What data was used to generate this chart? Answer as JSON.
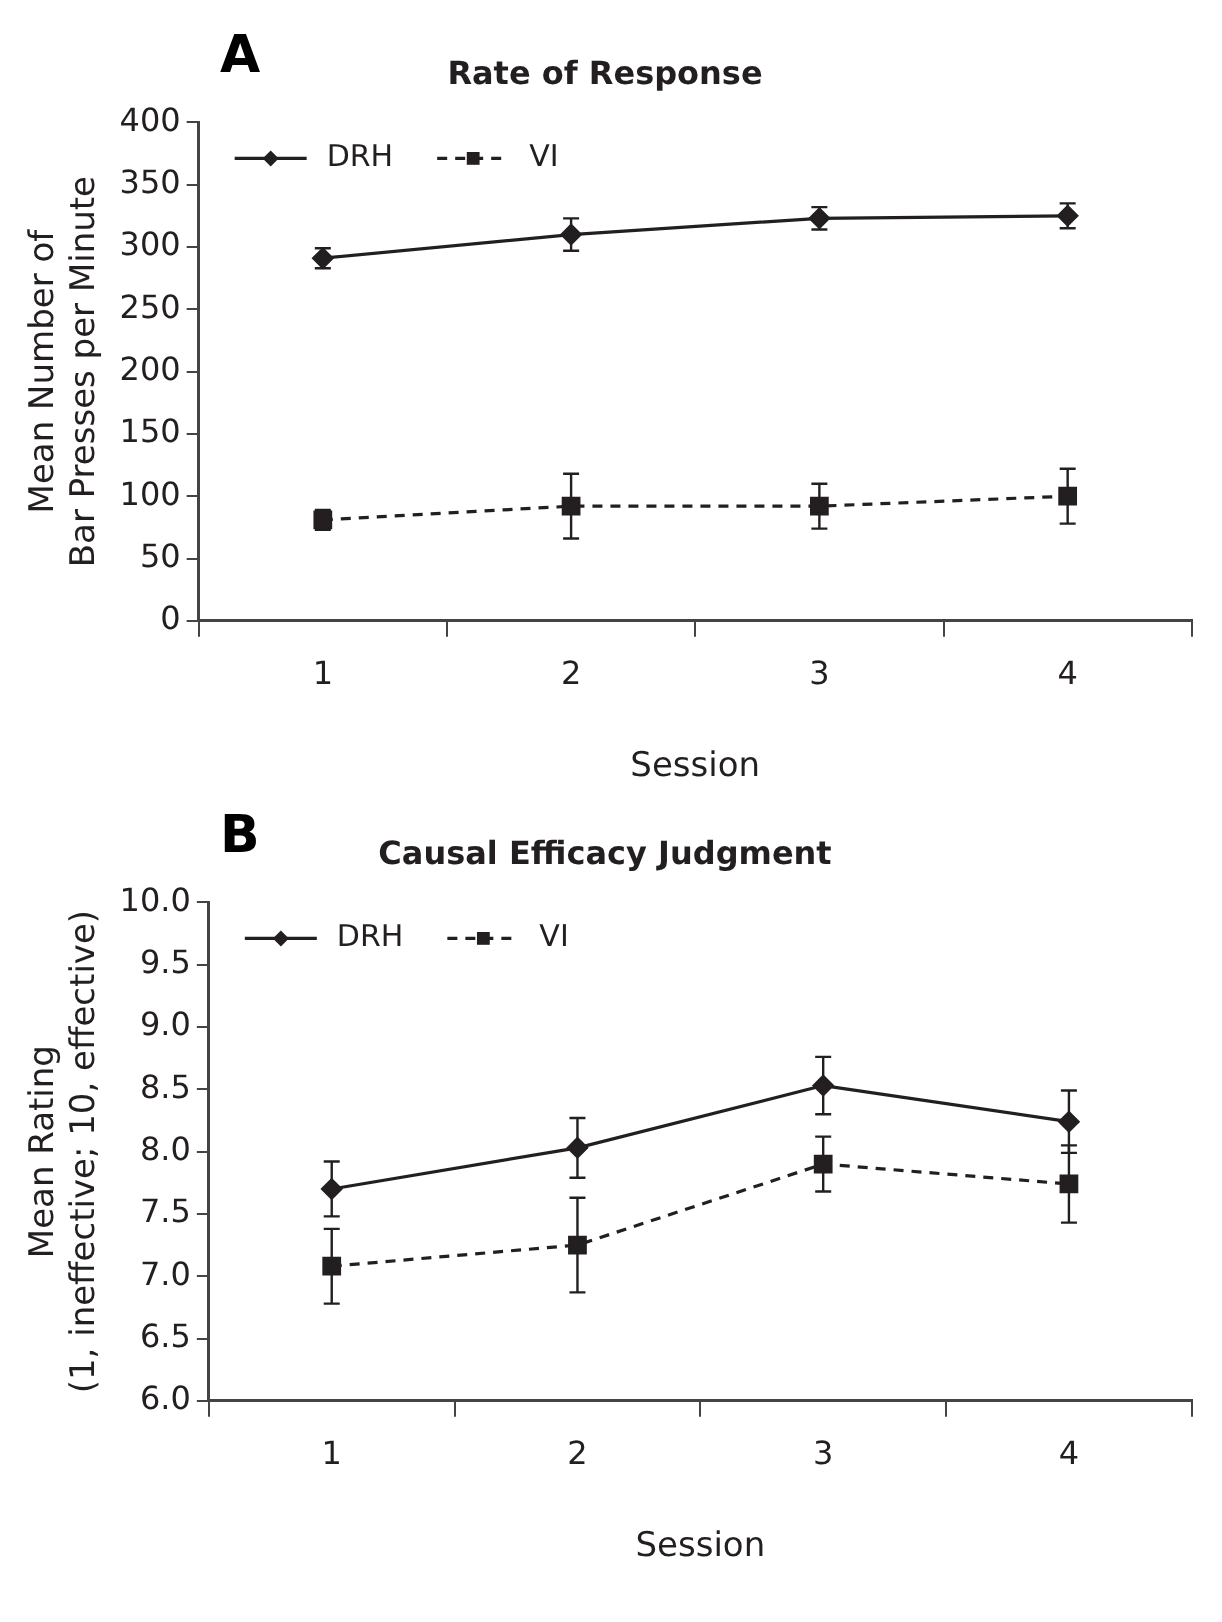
{
  "chart_data": [
    {
      "type": "line",
      "title": "Rate of Response",
      "xlabel": "Session",
      "ylabel": "Mean Number of\nBar Presses per Minute",
      "annotations": [
        "A"
      ],
      "categories": [
        "1",
        "2",
        "3",
        "4"
      ],
      "series": [
        {
          "name": "DRH",
          "color": "#231f20",
          "marker": "diamond",
          "line_style": "solid",
          "values": [
            291,
            310,
            323,
            325
          ],
          "errors": [
            8,
            13,
            9,
            10
          ]
        },
        {
          "name": "VI",
          "color": "#231f20",
          "marker": "square",
          "line_style": "dashed",
          "values": [
            81,
            92,
            92,
            100
          ],
          "errors": [
            8,
            26,
            18,
            22
          ]
        }
      ],
      "ylim": [
        0,
        400
      ],
      "yticks": [
        0,
        50,
        100,
        150,
        200,
        250,
        300,
        350,
        400
      ],
      "grid": false,
      "legend": "top left"
    },
    {
      "type": "line",
      "title": "Causal Efficacy Judgment",
      "xlabel": "Session",
      "ylabel": "Mean Rating\n(1, ineffective; 10, effective)",
      "annotations": [
        "B"
      ],
      "categories": [
        "1",
        "2",
        "3",
        "4"
      ],
      "series": [
        {
          "name": "DRH",
          "color": "#231f20",
          "marker": "diamond",
          "line_style": "solid",
          "values": [
            7.7,
            8.03,
            8.53,
            8.24
          ],
          "errors": [
            0.22,
            0.24,
            0.23,
            0.25
          ]
        },
        {
          "name": "VI",
          "color": "#231f20",
          "marker": "square",
          "line_style": "dashed",
          "values": [
            7.08,
            7.25,
            7.9,
            7.74
          ],
          "errors": [
            0.3,
            0.38,
            0.22,
            0.31
          ]
        }
      ],
      "ylim": [
        6.0,
        10.0
      ],
      "yticks": [
        {
          "value": 6,
          "label": "6.0"
        },
        {
          "value": 6.5,
          "label": "6.5"
        },
        {
          "value": 7,
          "label": "7.0"
        },
        {
          "value": 7.5,
          "label": "7.5"
        },
        {
          "value": 8,
          "label": "8.0"
        },
        {
          "value": 8.5,
          "label": "8.5"
        },
        {
          "value": 9,
          "label": "9.0"
        },
        {
          "value": 9.5,
          "label": "9.5"
        },
        {
          "value": 10,
          "label": "10.0"
        }
      ],
      "grid": false,
      "legend": "top left"
    }
  ]
}
